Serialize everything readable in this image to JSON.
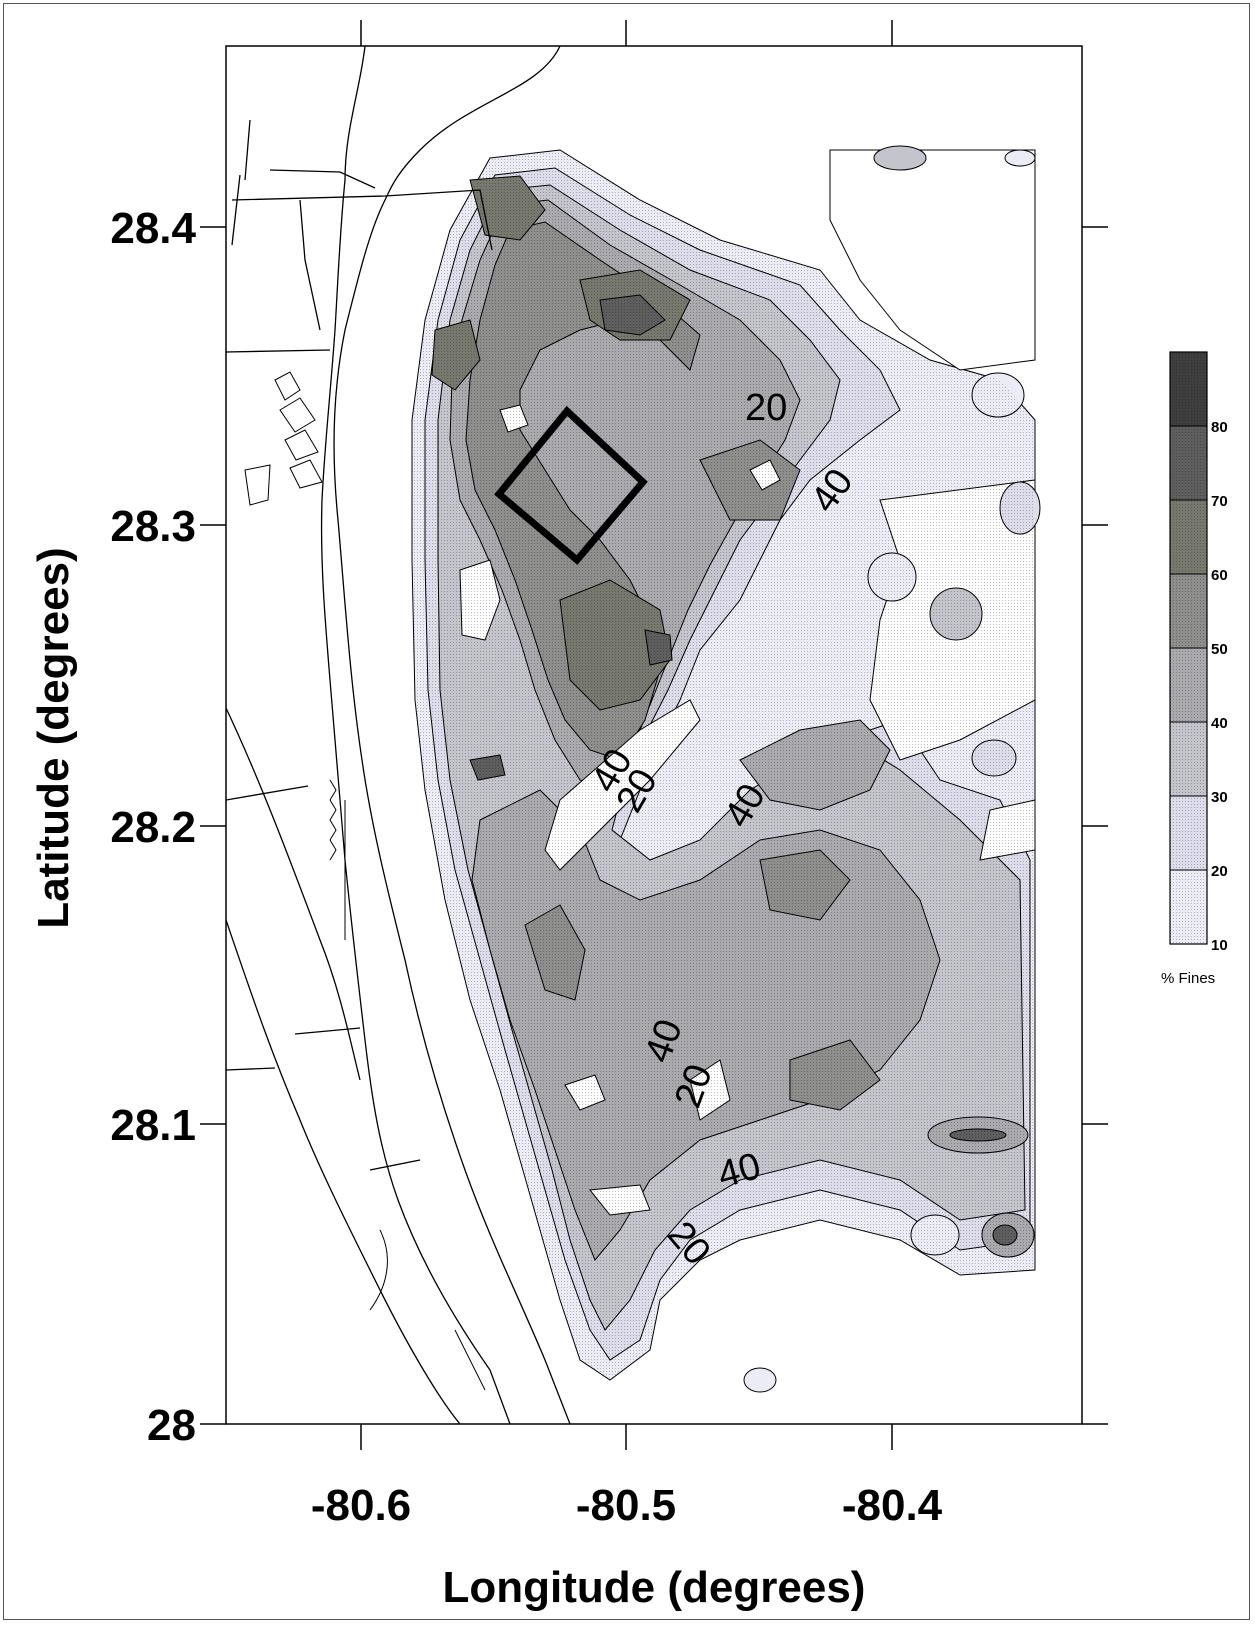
{
  "axes": {
    "xlabel": "Longitude (degrees)",
    "ylabel": "Latitude (degrees)",
    "x_ticks": [
      "-80.6",
      "-80.5",
      "-80.4"
    ],
    "y_ticks": [
      "28.4",
      "28.3",
      "28.2",
      "28.1",
      "28"
    ]
  },
  "legend": {
    "caption": "% Fines",
    "ticks": [
      "80",
      "70",
      "60",
      "50",
      "40",
      "30",
      "20",
      "10"
    ]
  },
  "contour_labels": [
    "20",
    "40",
    "40",
    "20",
    "40",
    "40",
    "20",
    "40",
    "20"
  ],
  "colors": {
    "level_10_20": "#ececf6",
    "level_20_30": "#dcdcea",
    "level_30_40": "#c4c4cc",
    "level_40_50": "#a9a9ae",
    "level_50_60": "#8e8f8c",
    "level_60_70": "#77786e",
    "level_70_80": "#5e5e5e",
    "level_80_90": "#3f3f3f"
  },
  "chart_data": {
    "type": "heatmap",
    "title": "",
    "xlabel": "Longitude (degrees)",
    "ylabel": "Latitude (degrees)",
    "xlim": [
      -80.65,
      -80.33
    ],
    "ylim": [
      27.99,
      28.46
    ],
    "x_ticks": [
      -80.6,
      -80.5,
      -80.4
    ],
    "y_ticks": [
      28.0,
      28.1,
      28.2,
      28.3,
      28.4
    ],
    "colorbar": {
      "label": "% Fines",
      "levels": [
        10,
        20,
        30,
        40,
        50,
        60,
        70,
        80,
        90
      ]
    },
    "contour_line_labels": [
      20,
      40,
      40,
      20,
      40,
      40,
      20,
      40,
      20
    ],
    "study_box": [
      [
        -80.52,
        28.338
      ],
      [
        -80.49,
        28.313
      ],
      [
        -80.515,
        28.287
      ],
      [
        -80.545,
        28.31
      ]
    ]
  }
}
